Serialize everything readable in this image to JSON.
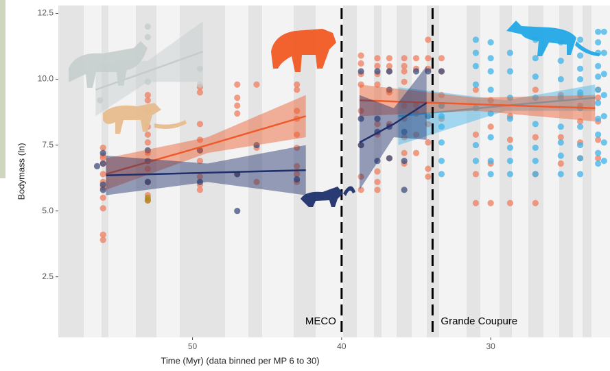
{
  "chart_data": {
    "type": "scatter",
    "xlabel": "Time (Myr) (data binned per MP 6 to 30)",
    "ylabel": "Bodymass (ln)",
    "xlim": [
      59,
      22
    ],
    "ylim": [
      0.2,
      12.8
    ],
    "xticks": [
      50,
      40,
      30
    ],
    "yticks": [
      2.5,
      {
        "value": 5,
        "label": "5.0"
      },
      7.5,
      {
        "value": 10,
        "label": "10.0"
      },
      12.5
    ],
    "series": [
      {
        "color": "#ef7d5f",
        "x": [
          56,
          56,
          56,
          56,
          56,
          56,
          56,
          56,
          56,
          56,
          56,
          53,
          53,
          53,
          53,
          53,
          53,
          53,
          53,
          53,
          53,
          53,
          49.5,
          49.5,
          49.5,
          49.5,
          49.5,
          49.5,
          49.5,
          49.5,
          49.5,
          47,
          47,
          47,
          47,
          47,
          45.7,
          45.7,
          45.7,
          43,
          43,
          43,
          43,
          43,
          43,
          43,
          43,
          43,
          38.7,
          38.7,
          38.7,
          38.7,
          38.7,
          38.7,
          38.7,
          38.7,
          37.6,
          37.6,
          37.6,
          37.6,
          37.6,
          37.6,
          37.6,
          37.6,
          37.6,
          36.8,
          36.8,
          36.8,
          36.8,
          36.8,
          36.8,
          35.8,
          35.8,
          35.8,
          35.8,
          35.8,
          35.8,
          35.8,
          35.8,
          35.8,
          35,
          35,
          35,
          35,
          35,
          35,
          34.2,
          34.2,
          34.2,
          34.2,
          34.2,
          34.2,
          34.2,
          33.3,
          33.3,
          33.3,
          33.3,
          31,
          31,
          31,
          31,
          30,
          30,
          30,
          30,
          28.7,
          28.7,
          28.7,
          27,
          27,
          27,
          27,
          25.3,
          25.3,
          25.3,
          24,
          24,
          24,
          24,
          24,
          22.8,
          22.8,
          22.8,
          22.8,
          22.8
        ],
        "values": [
          7.4,
          7.1,
          6.8,
          6.4,
          6.1,
          5.9,
          5.5,
          5.1,
          4.1,
          3.9,
          7.0,
          9.4,
          9.2,
          8.8,
          8.2,
          7.9,
          7.6,
          7.2,
          6.6,
          6.1,
          5.6,
          5.4,
          9.7,
          9.5,
          8.3,
          7.7,
          7.3,
          6.9,
          6.3,
          6.0,
          5.8,
          9.8,
          9.3,
          9.0,
          8.7,
          6.4,
          9.8,
          7.4,
          6.1,
          9.8,
          9.6,
          8.8,
          8.5,
          7.9,
          7.4,
          6.7,
          6.4,
          6.1,
          10.9,
          10.6,
          10.2,
          9.8,
          8.8,
          7.5,
          6.3,
          5.8,
          10.8,
          10.5,
          10.2,
          9.8,
          8.3,
          7.9,
          6.5,
          6.1,
          5.8,
          10.8,
          10.5,
          10.3,
          9.5,
          8.3,
          7.0,
          10.8,
          10.5,
          10.3,
          9.9,
          9.0,
          8.5,
          7.8,
          7.2,
          6.8,
          10.8,
          10.4,
          9.0,
          8.7,
          7.9,
          7.2,
          11.5,
          10.8,
          10.4,
          8.3,
          7.6,
          6.6,
          6.3,
          10.8,
          10.3,
          9.4,
          8.5,
          9.6,
          7.9,
          6.4,
          5.3,
          9.2,
          8.2,
          6.8,
          5.3,
          8.6,
          7.7,
          5.3,
          9.6,
          7.8,
          6.4,
          5.3,
          9.4,
          7.8,
          6.8,
          9.4,
          9.0,
          8.4,
          7.6,
          7.0,
          9.6,
          9.3,
          8.4,
          7.7,
          7.0
        ]
      },
      {
        "color": "#3d4e7e",
        "x": [
          56.4,
          56,
          56,
          56,
          56,
          53,
          53,
          53,
          49.5,
          49.5,
          47,
          47,
          45.7,
          43,
          38.7,
          38.7,
          38.7,
          37.6,
          37.6,
          37.6,
          37.6,
          36.8,
          36.8,
          36.8,
          36.8,
          35.8,
          35.8,
          35.8,
          35,
          34.2,
          34.2,
          33.3,
          33.3
        ],
        "values": [
          6.7,
          7.2,
          6.8,
          6.0,
          5.8,
          7.3,
          6.9,
          6.1,
          7.3,
          6.1,
          6.4,
          5.0,
          7.5,
          6.2,
          10.3,
          8.5,
          7.5,
          10.3,
          8.5,
          8.0,
          6.9,
          10.3,
          9.6,
          8.2,
          7.0,
          8.0,
          6.9,
          5.8,
          10.3,
          10.3,
          8.6,
          10.3,
          9.0
        ]
      },
      {
        "color": "#3fb4e9",
        "x": [
          33.3,
          33.3,
          33.3,
          33.3,
          33.3,
          33.3,
          31,
          31,
          31,
          31,
          31,
          31,
          31,
          30,
          30,
          30,
          30,
          30,
          30,
          30,
          30,
          28.7,
          28.7,
          28.7,
          28.7,
          28.7,
          28.7,
          28.7,
          27,
          27,
          27,
          27,
          27,
          27,
          27,
          27,
          25.3,
          25.3,
          25.3,
          25.3,
          25.3,
          25.3,
          25.3,
          25.3,
          24,
          24,
          24,
          24,
          24,
          24,
          24,
          24,
          24,
          24,
          22.8,
          22.8,
          22.8,
          22.8,
          22.8,
          22.8,
          22.8,
          22.8,
          22.8,
          22.8,
          22.8,
          22.4,
          22.4,
          22.4,
          22.4,
          22.4,
          22.4,
          22.4
        ],
        "values": [
          9.0,
          8.6,
          8.2,
          7.6,
          6.9,
          6.4,
          11.5,
          11.0,
          10.5,
          9.8,
          8.9,
          7.5,
          6.9,
          11.4,
          10.8,
          10.3,
          9.6,
          8.7,
          7.8,
          6.9,
          6.4,
          11.0,
          10.3,
          9.3,
          8.5,
          7.4,
          6.9,
          6.4,
          11.5,
          10.8,
          10.1,
          9.3,
          8.3,
          7.4,
          6.9,
          6.4,
          11.4,
          10.7,
          10.0,
          9.3,
          8.2,
          7.6,
          7.1,
          6.4,
          11.5,
          10.9,
          10.4,
          10.0,
          9.5,
          8.9,
          8.2,
          7.5,
          7.0,
          6.4,
          11.8,
          11.4,
          11.0,
          10.5,
          10.1,
          9.6,
          9.1,
          8.5,
          7.9,
          7.2,
          6.8,
          11.8,
          11.0,
          10.2,
          9.4,
          8.6,
          7.6,
          6.9
        ]
      },
      {
        "color": "#c4cccc",
        "x": [
          56.2,
          53,
          53,
          53,
          49.5,
          49.5
        ],
        "values": [
          9.2,
          12.0,
          11.6,
          9.9,
          10.4,
          9.8
        ]
      },
      {
        "color": "#b08a1c",
        "x": [
          53,
          53
        ],
        "values": [
          5.5,
          5.4
        ]
      }
    ],
    "fits": [
      {
        "color": "#c4cccc",
        "x": [
          56.5,
          53,
          49.3
        ],
        "values": [
          9.6,
          10.3,
          11.05
        ],
        "lower": [
          8.6,
          9.9,
          9.9
        ],
        "upper": [
          10.6,
          10.7,
          12.2
        ]
      },
      {
        "color": "#ee5a2a",
        "x": [
          55.8,
          49,
          42.4
        ],
        "values": [
          6.4,
          7.5,
          8.6
        ],
        "lower": [
          5.8,
          7.2,
          7.8
        ],
        "upper": [
          7.0,
          7.8,
          9.4
        ]
      },
      {
        "color": "#1f2f6b",
        "x": [
          55.8,
          49,
          42.4
        ],
        "values": [
          6.35,
          6.45,
          6.55
        ],
        "lower": [
          5.6,
          6.1,
          5.6
        ],
        "upper": [
          7.1,
          6.8,
          7.5
        ]
      },
      {
        "color": "#3fb4e9",
        "x": [
          36.2,
          29,
          23
        ],
        "values": [
          8.6,
          9.0,
          9.3
        ],
        "lower": [
          7.5,
          8.8,
          8.8
        ],
        "upper": [
          9.7,
          9.2,
          9.8
        ]
      },
      {
        "color": "#ee5a2a",
        "x": [
          38.8,
          31,
          23
        ],
        "values": [
          9.2,
          9.05,
          8.9
        ],
        "lower": [
          8.6,
          8.8,
          8.4
        ],
        "upper": [
          9.8,
          9.3,
          9.4
        ]
      },
      {
        "color": "#1f2f6b",
        "x": [
          38.8,
          36.5,
          34.3
        ],
        "values": [
          7.6,
          8.3,
          9.1
        ],
        "lower": [
          5.8,
          7.8,
          7.7
        ],
        "upper": [
          9.4,
          8.9,
          10.5
        ]
      }
    ],
    "annotations": [
      {
        "label": "MECO",
        "x": 40
      },
      {
        "label": "Grande Coupure",
        "x": 33.9
      }
    ]
  }
}
